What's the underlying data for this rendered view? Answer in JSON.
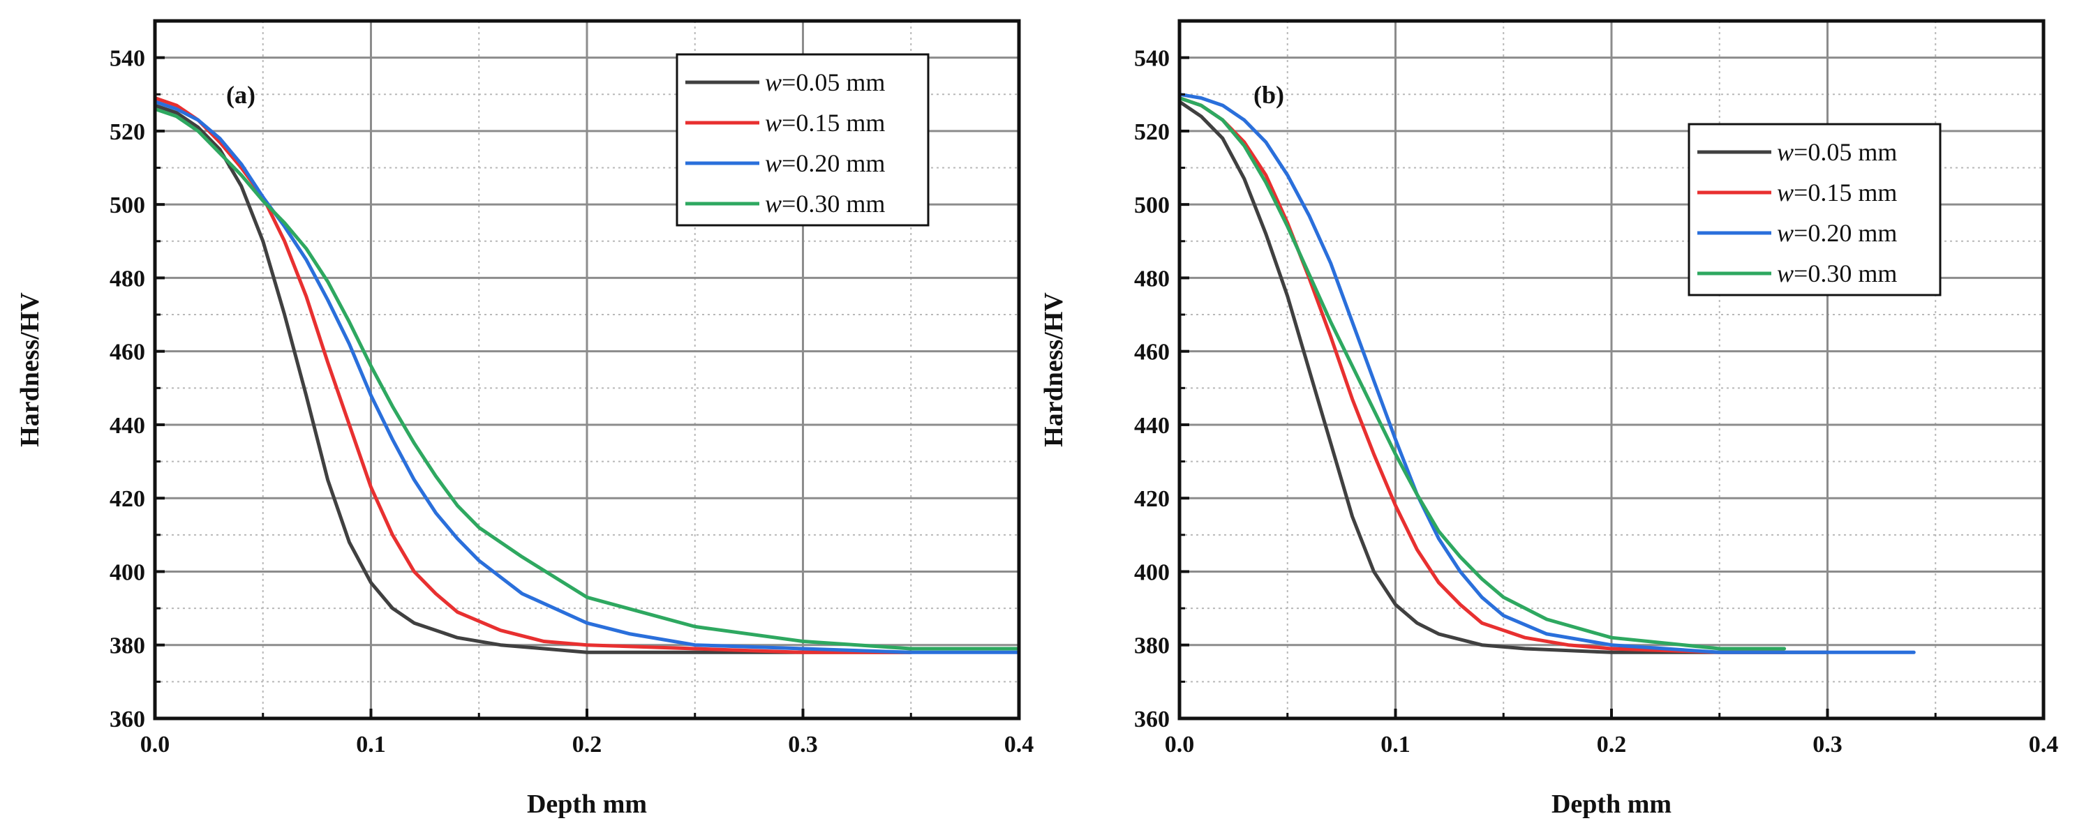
{
  "chart_data": [
    {
      "type": "line",
      "panel_label": "(a)",
      "xlabel": "Depth mm",
      "ylabel": "Hardness/HV",
      "xlim": [
        0.0,
        0.4
      ],
      "ylim": [
        360,
        550
      ],
      "xticks": [
        0.0,
        0.1,
        0.2,
        0.3,
        0.4
      ],
      "xtick_labels": [
        "0.0",
        "0.1",
        "0.2",
        "0.3",
        "0.4"
      ],
      "yticks": [
        360,
        380,
        400,
        420,
        440,
        460,
        480,
        500,
        520,
        540
      ],
      "ytick_labels": [
        "360",
        "380",
        "400",
        "420",
        "440",
        "460",
        "480",
        "500",
        "520",
        "540"
      ],
      "grid": true,
      "legend_position": "top-right",
      "series": [
        {
          "name": "w=0.05 mm",
          "w_symbol": "w",
          "w_rest": "=0.05 mm",
          "color": "#404040",
          "x": [
            0,
            0.01,
            0.02,
            0.03,
            0.04,
            0.05,
            0.06,
            0.07,
            0.08,
            0.09,
            0.1,
            0.11,
            0.12,
            0.14,
            0.16,
            0.2,
            0.25,
            0.3,
            0.35
          ],
          "y": [
            527,
            525,
            521,
            515,
            505,
            490,
            470,
            448,
            425,
            408,
            397,
            390,
            386,
            382,
            380,
            378,
            378,
            378,
            378
          ]
        },
        {
          "name": "w=0.15 mm",
          "w_symbol": "w",
          "w_rest": "=0.15 mm",
          "color": "#e83030",
          "x": [
            0,
            0.01,
            0.02,
            0.03,
            0.04,
            0.05,
            0.06,
            0.07,
            0.08,
            0.09,
            0.1,
            0.11,
            0.12,
            0.13,
            0.14,
            0.16,
            0.18,
            0.2,
            0.25,
            0.3,
            0.35
          ],
          "y": [
            529,
            527,
            523,
            517,
            510,
            502,
            490,
            475,
            457,
            440,
            423,
            410,
            400,
            394,
            389,
            384,
            381,
            380,
            379,
            378,
            378
          ]
        },
        {
          "name": "w=0.20 mm",
          "w_symbol": "w",
          "w_rest": "=0.20 mm",
          "color": "#2a6fdb",
          "x": [
            0,
            0.01,
            0.02,
            0.03,
            0.04,
            0.05,
            0.06,
            0.07,
            0.08,
            0.09,
            0.1,
            0.11,
            0.12,
            0.13,
            0.14,
            0.15,
            0.17,
            0.2,
            0.22,
            0.25,
            0.3,
            0.35,
            0.4
          ],
          "y": [
            528,
            526,
            523,
            518,
            511,
            502,
            494,
            485,
            474,
            462,
            448,
            436,
            425,
            416,
            409,
            403,
            394,
            386,
            383,
            380,
            379,
            378,
            378
          ]
        },
        {
          "name": "w=0.30 mm",
          "w_symbol": "w",
          "w_rest": "=0.30 mm",
          "color": "#2ea860",
          "x": [
            0,
            0.01,
            0.02,
            0.03,
            0.04,
            0.05,
            0.06,
            0.07,
            0.08,
            0.09,
            0.1,
            0.11,
            0.12,
            0.13,
            0.14,
            0.15,
            0.17,
            0.2,
            0.25,
            0.3,
            0.35,
            0.4
          ],
          "y": [
            526,
            524,
            520,
            514,
            508,
            501,
            495,
            488,
            479,
            468,
            456,
            445,
            435,
            426,
            418,
            412,
            404,
            393,
            385,
            381,
            379,
            379
          ]
        }
      ]
    },
    {
      "type": "line",
      "panel_label": "(b)",
      "xlabel": "Depth mm",
      "ylabel": "Hardness/HV",
      "xlim": [
        0.0,
        0.4
      ],
      "ylim": [
        360,
        550
      ],
      "xticks": [
        0.0,
        0.1,
        0.2,
        0.3,
        0.4
      ],
      "xtick_labels": [
        "0.0",
        "0.1",
        "0.2",
        "0.3",
        "0.4"
      ],
      "yticks": [
        360,
        380,
        400,
        420,
        440,
        460,
        480,
        500,
        520,
        540
      ],
      "ytick_labels": [
        "360",
        "380",
        "400",
        "420",
        "440",
        "460",
        "480",
        "500",
        "520",
        "540"
      ],
      "grid": true,
      "legend_position": "top-right",
      "series": [
        {
          "name": "w=0.05 mm",
          "w_symbol": "w",
          "w_rest": "=0.05 mm",
          "color": "#404040",
          "x": [
            0,
            0.01,
            0.02,
            0.03,
            0.04,
            0.05,
            0.06,
            0.07,
            0.08,
            0.09,
            0.1,
            0.11,
            0.12,
            0.14,
            0.16,
            0.2,
            0.25,
            0.3
          ],
          "y": [
            528,
            524,
            518,
            507,
            492,
            475,
            455,
            435,
            415,
            400,
            391,
            386,
            383,
            380,
            379,
            378,
            378,
            378
          ]
        },
        {
          "name": "w=0.15 mm",
          "w_symbol": "w",
          "w_rest": "=0.15 mm",
          "color": "#e83030",
          "x": [
            0,
            0.01,
            0.02,
            0.03,
            0.04,
            0.05,
            0.06,
            0.07,
            0.08,
            0.09,
            0.1,
            0.11,
            0.12,
            0.13,
            0.14,
            0.16,
            0.18,
            0.2,
            0.25,
            0.28
          ],
          "y": [
            529,
            527,
            523,
            517,
            508,
            495,
            480,
            464,
            447,
            432,
            418,
            406,
            397,
            391,
            386,
            382,
            380,
            379,
            378,
            378
          ]
        },
        {
          "name": "w=0.20 mm",
          "w_symbol": "w",
          "w_rest": "=0.20 mm",
          "color": "#2a6fdb",
          "x": [
            0,
            0.01,
            0.02,
            0.03,
            0.04,
            0.05,
            0.06,
            0.07,
            0.08,
            0.09,
            0.1,
            0.11,
            0.12,
            0.13,
            0.14,
            0.15,
            0.17,
            0.2,
            0.25,
            0.3,
            0.34
          ],
          "y": [
            530,
            529,
            527,
            523,
            517,
            508,
            497,
            484,
            468,
            452,
            436,
            421,
            409,
            400,
            393,
            388,
            383,
            380,
            378,
            378,
            378
          ]
        },
        {
          "name": "w=0.30 mm",
          "w_symbol": "w",
          "w_rest": "=0.30 mm",
          "color": "#2ea860",
          "x": [
            0,
            0.01,
            0.02,
            0.03,
            0.04,
            0.05,
            0.06,
            0.07,
            0.08,
            0.09,
            0.1,
            0.11,
            0.12,
            0.13,
            0.14,
            0.15,
            0.17,
            0.2,
            0.25,
            0.28
          ],
          "y": [
            529,
            527,
            523,
            516,
            506,
            494,
            481,
            468,
            456,
            444,
            432,
            421,
            411,
            404,
            398,
            393,
            387,
            382,
            379,
            379
          ]
        }
      ]
    }
  ]
}
